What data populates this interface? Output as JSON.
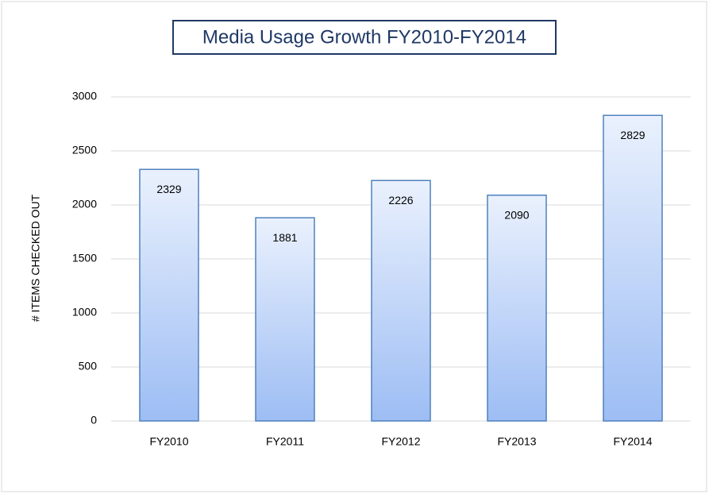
{
  "chart_data": {
    "type": "bar",
    "title": "Media Usage Growth FY2010-FY2014",
    "y_label": "# ITEMS CHECKED OUT",
    "categories": [
      "FY2010",
      "FY2011",
      "FY2012",
      "FY2013",
      "FY2014"
    ],
    "values": [
      2329,
      1881,
      2226,
      2090,
      2829
    ],
    "color": "#4f81bd",
    "ylim": [
      0,
      3000
    ],
    "yticks": [
      0,
      500,
      1000,
      1500,
      2000,
      2500,
      3000
    ],
    "grid": true
  }
}
